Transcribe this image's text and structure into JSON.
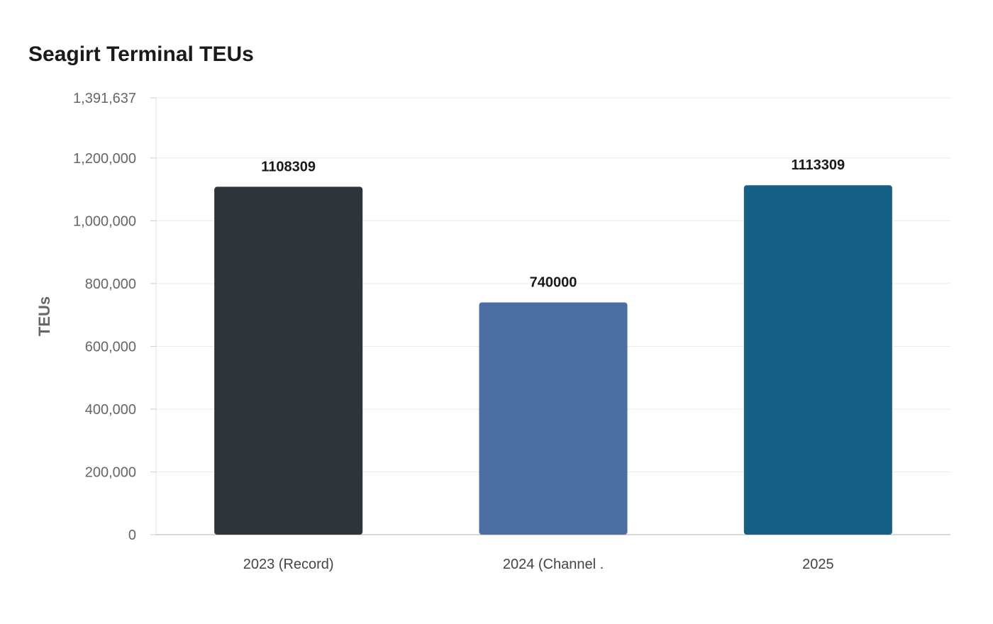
{
  "chart_data": {
    "type": "bar",
    "title": "Seagirt Terminal TEUs",
    "xlabel": "",
    "ylabel": "TEUs",
    "categories": [
      "2023 (Record)",
      "2024 (Channel .",
      "2025"
    ],
    "values": [
      1108309,
      740000,
      1113309
    ],
    "data_labels": [
      "1108309",
      "740000",
      "1113309"
    ],
    "bar_colors": [
      "#2e3538",
      "#4b6ea3",
      "#166088"
    ],
    "ylim": [
      0,
      1391637
    ],
    "yticks": [
      0,
      200000,
      400000,
      600000,
      800000,
      1000000,
      1200000,
      1391637
    ],
    "ytick_labels": [
      "0",
      "200,000",
      "400,000",
      "600,000",
      "800,000",
      "1,000,000",
      "1,200,000",
      "1,391,637"
    ],
    "grid": true,
    "legend": "none"
  }
}
